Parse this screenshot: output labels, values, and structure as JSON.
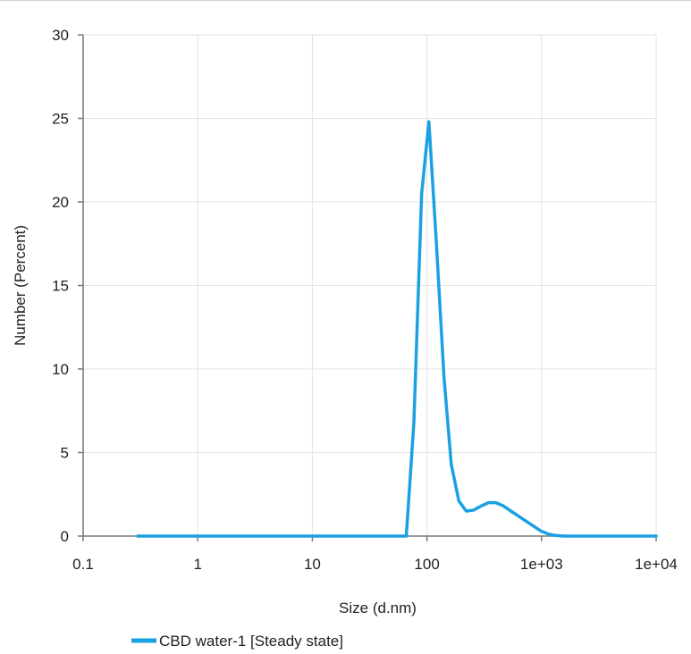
{
  "chart_data": {
    "type": "line",
    "xlabel": "Size (d.nm)",
    "ylabel": "Number (Percent)",
    "x_scale": "log",
    "xlim": [
      0.1,
      10000
    ],
    "ylim": [
      0,
      30
    ],
    "x_ticks": [
      {
        "value": 0.1,
        "label": "0.1"
      },
      {
        "value": 1,
        "label": "1"
      },
      {
        "value": 10,
        "label": "10"
      },
      {
        "value": 100,
        "label": "100"
      },
      {
        "value": 1000,
        "label": "1e+03"
      },
      {
        "value": 10000,
        "label": "1e+04"
      }
    ],
    "y_ticks": [
      {
        "value": 0,
        "label": "0"
      },
      {
        "value": 5,
        "label": "5"
      },
      {
        "value": 10,
        "label": "10"
      },
      {
        "value": 15,
        "label": "15"
      },
      {
        "value": 20,
        "label": "20"
      },
      {
        "value": 25,
        "label": "25"
      },
      {
        "value": 30,
        "label": "30"
      }
    ],
    "grid": true,
    "legend_position": "bottom",
    "series": [
      {
        "name": "CBD water-1 [Steady state]",
        "color": "#1BA1E2",
        "points": [
          [
            0.3,
            0
          ],
          [
            66,
            0
          ],
          [
            77,
            6.8
          ],
          [
            90,
            20.5
          ],
          [
            104,
            24.8
          ],
          [
            121,
            17.5
          ],
          [
            141,
            9.5
          ],
          [
            163,
            4.3
          ],
          [
            190,
            2.1
          ],
          [
            220,
            1.5
          ],
          [
            255,
            1.55
          ],
          [
            297,
            1.8
          ],
          [
            345,
            2.0
          ],
          [
            400,
            2.0
          ],
          [
            465,
            1.8
          ],
          [
            540,
            1.5
          ],
          [
            628,
            1.2
          ],
          [
            730,
            0.9
          ],
          [
            850,
            0.6
          ],
          [
            990,
            0.3
          ],
          [
            1150,
            0.12
          ],
          [
            1340,
            0.03
          ],
          [
            1560,
            0
          ],
          [
            10000,
            0
          ]
        ]
      }
    ]
  }
}
